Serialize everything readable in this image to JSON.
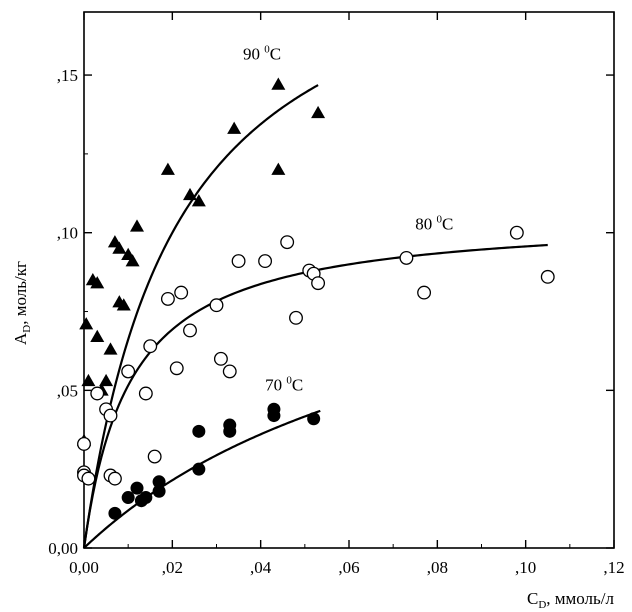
{
  "chart_data": {
    "type": "scatter",
    "xlim": [
      0,
      0.12
    ],
    "ylim": [
      0,
      0.17
    ],
    "xticks": [
      0,
      0.02,
      0.04,
      0.06,
      0.08,
      0.1,
      0.12
    ],
    "xtick_labels": [
      "0,00",
      ",02",
      ",04",
      ",06",
      ",08",
      ",10",
      ",12"
    ],
    "yticks": [
      0,
      0.05,
      0.1,
      0.15
    ],
    "ytick_labels": [
      "0,00",
      ",05",
      ",10",
      ",15"
    ],
    "xlabel": {
      "main": "C",
      "sub": "D",
      "rest": ", ммоль/л"
    },
    "ylabel": {
      "main": "A",
      "sub": "D",
      "rest": ", моль/кг"
    },
    "grid": false,
    "series": [
      {
        "marker": "triangle",
        "label": {
          "num": "90 ",
          "sup": "0",
          "unit": "C"
        },
        "label_at": [
          0.036,
          0.155
        ],
        "curve": {
          "qmax": 0.205,
          "k": 0.021,
          "xmax": 0.053
        },
        "points": [
          [
            0.0,
            0.034
          ],
          [
            0.0005,
            0.071
          ],
          [
            0.001,
            0.053
          ],
          [
            0.002,
            0.085
          ],
          [
            0.003,
            0.084
          ],
          [
            0.003,
            0.067
          ],
          [
            0.004,
            0.05
          ],
          [
            0.005,
            0.053
          ],
          [
            0.006,
            0.063
          ],
          [
            0.007,
            0.097
          ],
          [
            0.008,
            0.078
          ],
          [
            0.008,
            0.095
          ],
          [
            0.009,
            0.077
          ],
          [
            0.01,
            0.093
          ],
          [
            0.011,
            0.091
          ],
          [
            0.012,
            0.102
          ],
          [
            0.019,
            0.12
          ],
          [
            0.024,
            0.112
          ],
          [
            0.026,
            0.11
          ],
          [
            0.034,
            0.133
          ],
          [
            0.044,
            0.147
          ],
          [
            0.044,
            0.12
          ],
          [
            0.053,
            0.138
          ]
        ]
      },
      {
        "marker": "open-circle",
        "label": {
          "num": "80 ",
          "sup": "0",
          "unit": "C"
        },
        "label_at": [
          0.075,
          0.101
        ],
        "curve": {
          "qmax": 0.1057,
          "k": 0.0105,
          "xmax": 0.105
        },
        "points": [
          [
            0.0,
            0.033
          ],
          [
            0.0,
            0.024
          ],
          [
            0.0,
            0.023
          ],
          [
            0.001,
            0.022
          ],
          [
            0.003,
            0.049
          ],
          [
            0.005,
            0.044
          ],
          [
            0.006,
            0.042
          ],
          [
            0.006,
            0.023
          ],
          [
            0.007,
            0.022
          ],
          [
            0.01,
            0.056
          ],
          [
            0.014,
            0.049
          ],
          [
            0.015,
            0.064
          ],
          [
            0.016,
            0.029
          ],
          [
            0.019,
            0.079
          ],
          [
            0.021,
            0.057
          ],
          [
            0.022,
            0.081
          ],
          [
            0.024,
            0.069
          ],
          [
            0.03,
            0.077
          ],
          [
            0.031,
            0.06
          ],
          [
            0.033,
            0.056
          ],
          [
            0.035,
            0.091
          ],
          [
            0.041,
            0.091
          ],
          [
            0.046,
            0.097
          ],
          [
            0.048,
            0.073
          ],
          [
            0.051,
            0.088
          ],
          [
            0.052,
            0.087
          ],
          [
            0.053,
            0.084
          ],
          [
            0.073,
            0.092
          ],
          [
            0.077,
            0.081
          ],
          [
            0.098,
            0.1
          ],
          [
            0.105,
            0.086
          ]
        ]
      },
      {
        "marker": "filled-circle",
        "label": {
          "num": "70 ",
          "sup": "0",
          "unit": "C"
        },
        "label_at": [
          0.041,
          0.05
        ],
        "curve": {
          "qmax": 0.1117,
          "k": 0.0839,
          "xmax": 0.0535
        },
        "points": [
          [
            0.007,
            0.011
          ],
          [
            0.01,
            0.016
          ],
          [
            0.012,
            0.019
          ],
          [
            0.013,
            0.015
          ],
          [
            0.014,
            0.016
          ],
          [
            0.017,
            0.021
          ],
          [
            0.017,
            0.018
          ],
          [
            0.026,
            0.037
          ],
          [
            0.026,
            0.025
          ],
          [
            0.033,
            0.039
          ],
          [
            0.033,
            0.037
          ],
          [
            0.043,
            0.044
          ],
          [
            0.043,
            0.042
          ],
          [
            0.052,
            0.041
          ]
        ]
      }
    ]
  }
}
